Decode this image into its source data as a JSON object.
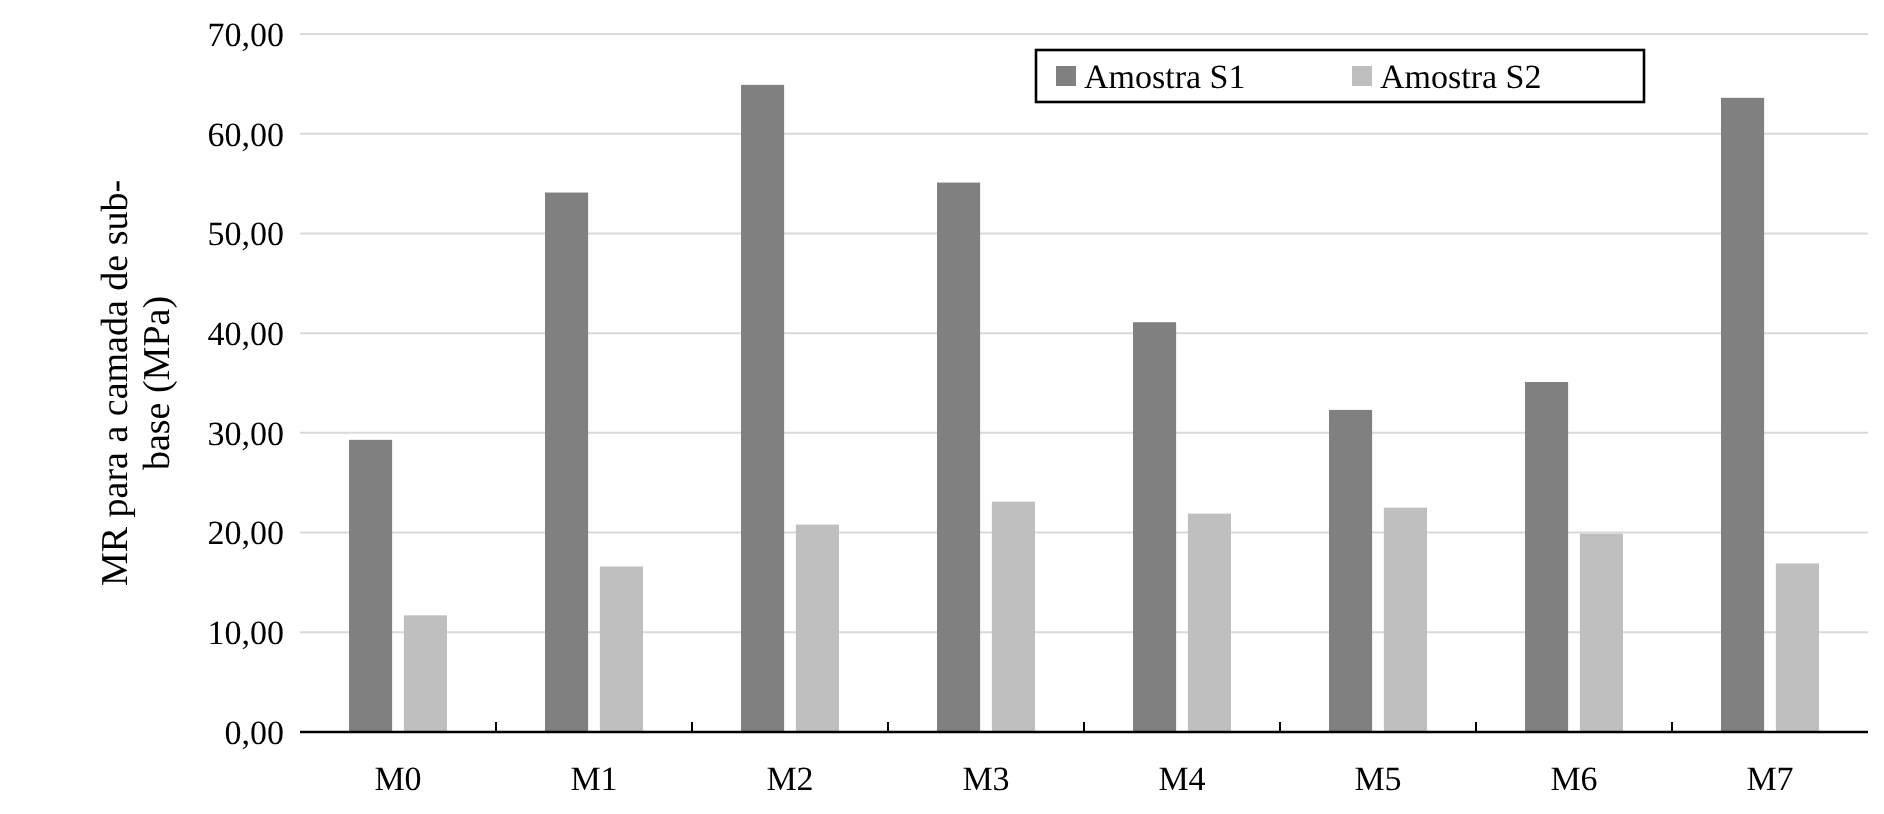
{
  "chart_data": {
    "type": "bar",
    "ylabel": "MR para a camada de sub-base (MPa)",
    "categories": [
      "M0",
      "M1",
      "M2",
      "M3",
      "M4",
      "M5",
      "M6",
      "M7"
    ],
    "series": [
      {
        "name": "Amostra S1",
        "color": "#808080",
        "values": [
          29.3,
          54.1,
          64.9,
          55.1,
          41.1,
          32.3,
          35.1,
          63.6
        ]
      },
      {
        "name": "Amostra S2",
        "color": "#bfbfbf",
        "values": [
          11.7,
          16.6,
          20.8,
          23.1,
          21.9,
          22.5,
          19.9,
          16.9
        ]
      }
    ],
    "ylim": [
      0,
      70
    ],
    "yticks": [
      {
        "value": 0,
        "label": "0,00"
      },
      {
        "value": 10,
        "label": "10,00"
      },
      {
        "value": 20,
        "label": "20,00"
      },
      {
        "value": 30,
        "label": "30,00"
      },
      {
        "value": 40,
        "label": "40,00"
      },
      {
        "value": 50,
        "label": "50,00"
      },
      {
        "value": 60,
        "label": "60,00"
      },
      {
        "value": 70,
        "label": "70,00"
      }
    ],
    "grid": "y",
    "legend": "top right"
  }
}
